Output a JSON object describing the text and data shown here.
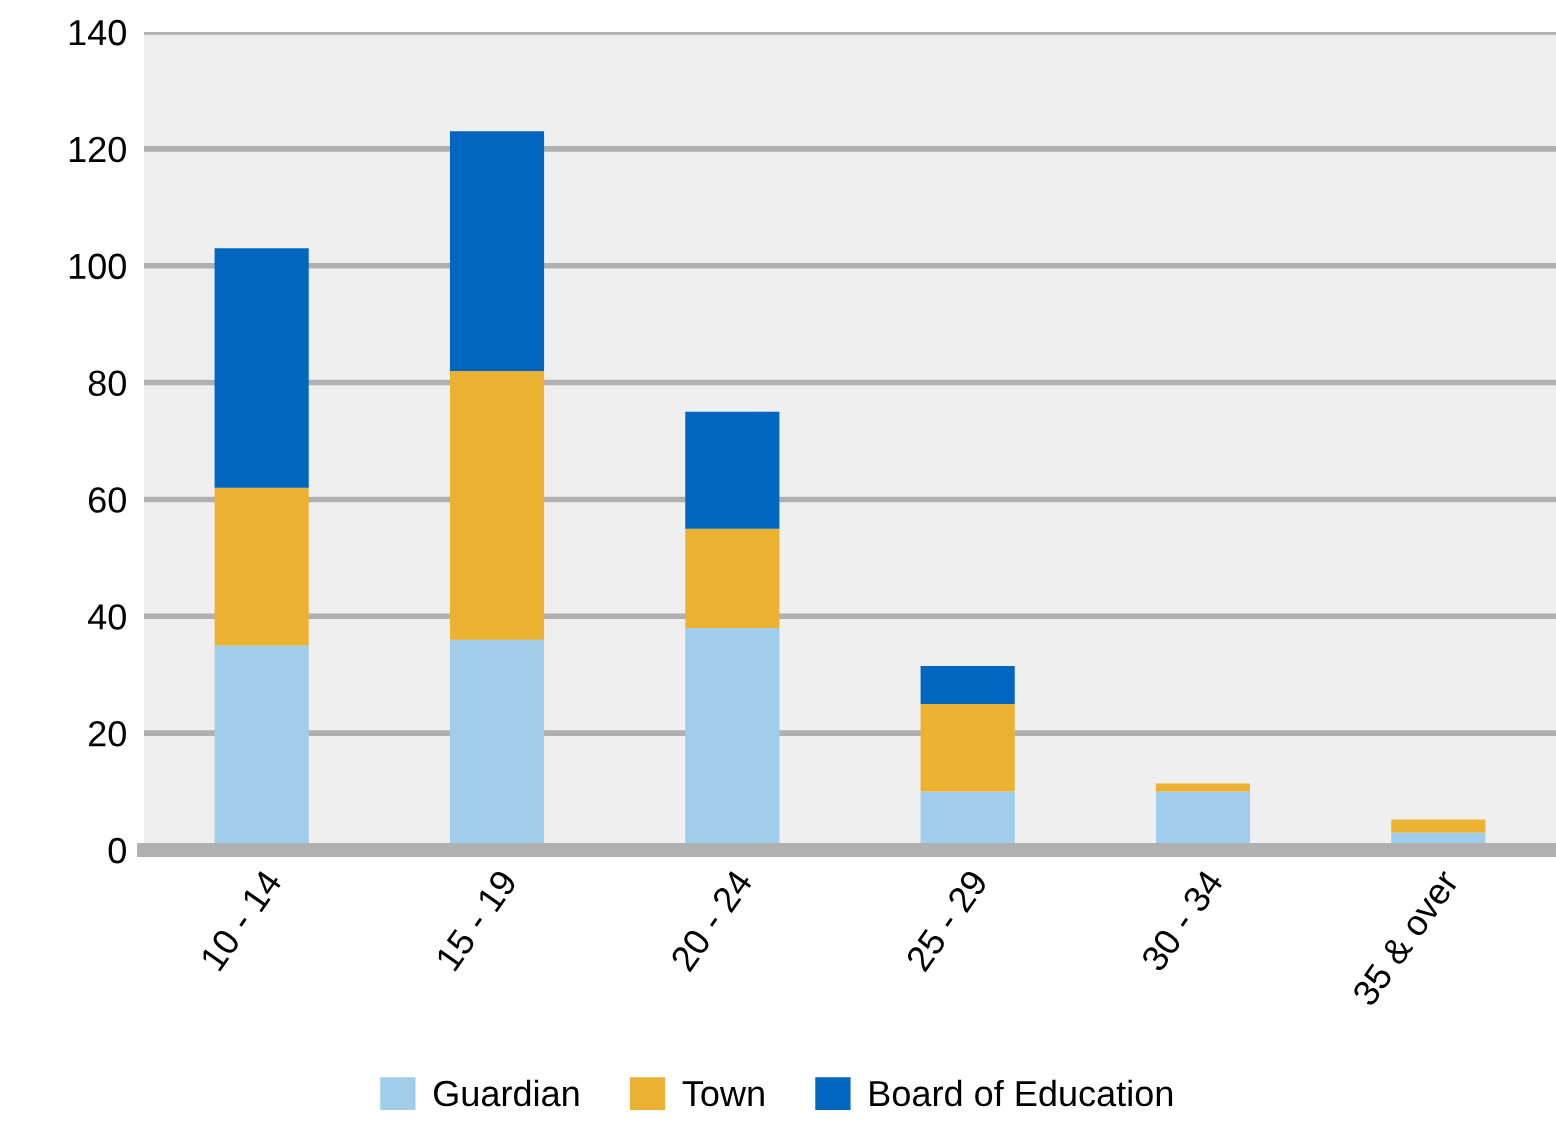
{
  "chart_data": {
    "type": "bar",
    "stacked": true,
    "categories": [
      "10 - 14",
      "15 - 19",
      "20 - 24",
      "25 - 29",
      "30 - 34",
      "35 & over"
    ],
    "series": [
      {
        "name": "Guardian",
        "color": "#a0cdea",
        "values": [
          35,
          36,
          38,
          10,
          10,
          3
        ]
      },
      {
        "name": "Town",
        "color": "#eab230",
        "values": [
          27,
          46,
          17,
          15,
          1.4,
          2.2
        ]
      },
      {
        "name": "Board of Education",
        "color": "#0066bf",
        "values": [
          41,
          41,
          20,
          6.5,
          null,
          null
        ]
      }
    ],
    "ylim": [
      0,
      140
    ],
    "yticks": [
      0,
      20,
      40,
      60,
      80,
      100,
      120,
      140
    ],
    "grid": "y",
    "legend": "bottom"
  }
}
